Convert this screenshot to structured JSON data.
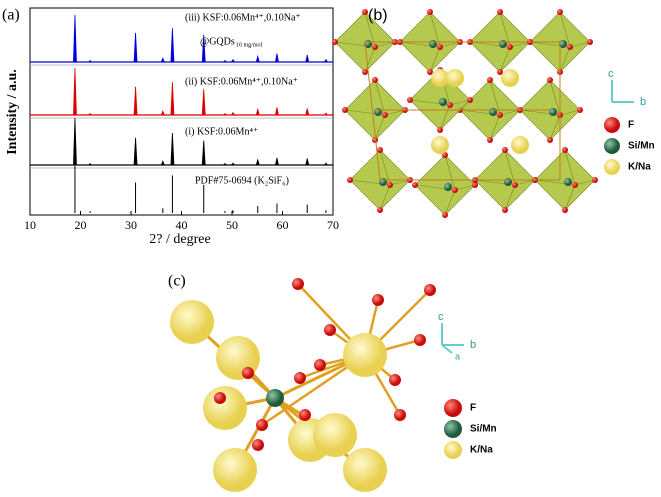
{
  "panel_a": {
    "label": "(a)"
  },
  "chart_data": {
    "type": "stick",
    "xlabel": "2? / degree",
    "ylabel": "Intensity / a.u.",
    "xlim": [
      10,
      70
    ],
    "xticks": [
      10,
      20,
      30,
      40,
      50,
      60,
      70
    ],
    "x": [
      18.9,
      21.9,
      30.9,
      36.3,
      38.2,
      44.4,
      48.6,
      50.2,
      55.1,
      58.9,
      64.9,
      68.6
    ],
    "series": [
      {
        "name": "(iii) KSF:0.06Mn⁴⁺,0.10Na⁺",
        "note": "@GQDs",
        "note_sub": "10 mg/mol",
        "color": "#0000dd",
        "values": [
          100,
          3,
          62,
          8,
          72,
          58,
          3,
          5,
          12,
          18,
          15,
          5
        ]
      },
      {
        "name": "(ii) KSF:0.06Mn⁴⁺,0.10Na⁺",
        "color": "#dd0000",
        "values": [
          100,
          3,
          60,
          8,
          70,
          55,
          3,
          5,
          12,
          16,
          14,
          4
        ]
      },
      {
        "name": "(i) KSF:0.06Mn⁴⁺",
        "color": "#000000",
        "values": [
          100,
          3,
          58,
          8,
          68,
          52,
          3,
          4,
          11,
          15,
          14,
          4
        ]
      },
      {
        "name": "PDF#75-0694 (K₂SiF₆)",
        "color": "#000000",
        "values": [
          100,
          4,
          65,
          10,
          80,
          60,
          4,
          6,
          15,
          20,
          18,
          6
        ]
      }
    ]
  },
  "panel_b": {
    "label": "(b)",
    "legend": [
      "F",
      "Si/Mn",
      "K/Na"
    ],
    "axes": [
      "c",
      "b"
    ]
  },
  "panel_c": {
    "label": "(c)",
    "legend": [
      "F",
      "Si/Mn",
      "K/Na"
    ],
    "axes": [
      "c",
      "a",
      "b"
    ]
  }
}
